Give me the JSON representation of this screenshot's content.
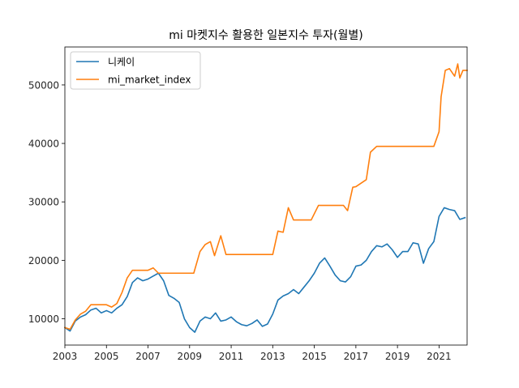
{
  "chart_data": {
    "type": "line",
    "title": "mi 마켓지수 활용한 일본지수 투자(월별)",
    "xlabel": "",
    "ylabel": "",
    "xlim": [
      2003.0,
      2022.35
    ],
    "ylim": [
      5500,
      56500
    ],
    "x_ticks": [
      2003,
      2005,
      2007,
      2009,
      2011,
      2013,
      2015,
      2017,
      2019,
      2021
    ],
    "x_tick_labels": [
      "2003",
      "2005",
      "2007",
      "2009",
      "2011",
      "2013",
      "2015",
      "2017",
      "2019",
      "2021"
    ],
    "y_ticks": [
      10000,
      20000,
      30000,
      40000,
      50000
    ],
    "y_tick_labels": [
      "10000",
      "20000",
      "30000",
      "40000",
      "50000"
    ],
    "legend_position": "upper-left",
    "series": [
      {
        "name": "니케이",
        "color": "#1f77b4",
        "points": [
          [
            2003.0,
            8500
          ],
          [
            2003.25,
            7900
          ],
          [
            2003.5,
            9600
          ],
          [
            2003.75,
            10300
          ],
          [
            2004.0,
            10700
          ],
          [
            2004.25,
            11500
          ],
          [
            2004.5,
            11800
          ],
          [
            2004.75,
            11000
          ],
          [
            2005.0,
            11400
          ],
          [
            2005.25,
            11000
          ],
          [
            2005.5,
            11800
          ],
          [
            2005.75,
            12400
          ],
          [
            2006.0,
            13800
          ],
          [
            2006.25,
            16200
          ],
          [
            2006.5,
            17000
          ],
          [
            2006.75,
            16500
          ],
          [
            2007.0,
            16800
          ],
          [
            2007.25,
            17300
          ],
          [
            2007.5,
            17800
          ],
          [
            2007.75,
            16500
          ],
          [
            2008.0,
            14000
          ],
          [
            2008.25,
            13500
          ],
          [
            2008.5,
            12800
          ],
          [
            2008.75,
            10000
          ],
          [
            2009.0,
            8500
          ],
          [
            2009.25,
            7700
          ],
          [
            2009.5,
            9600
          ],
          [
            2009.75,
            10300
          ],
          [
            2010.0,
            10000
          ],
          [
            2010.25,
            11000
          ],
          [
            2010.5,
            9600
          ],
          [
            2010.75,
            9800
          ],
          [
            2011.0,
            10300
          ],
          [
            2011.25,
            9500
          ],
          [
            2011.5,
            9000
          ],
          [
            2011.75,
            8800
          ],
          [
            2012.0,
            9200
          ],
          [
            2012.25,
            9800
          ],
          [
            2012.5,
            8700
          ],
          [
            2012.75,
            9100
          ],
          [
            2013.0,
            10800
          ],
          [
            2013.25,
            13200
          ],
          [
            2013.5,
            13900
          ],
          [
            2013.75,
            14300
          ],
          [
            2014.0,
            15000
          ],
          [
            2014.25,
            14300
          ],
          [
            2014.5,
            15400
          ],
          [
            2014.75,
            16500
          ],
          [
            2015.0,
            17800
          ],
          [
            2015.25,
            19500
          ],
          [
            2015.5,
            20400
          ],
          [
            2015.75,
            19000
          ],
          [
            2016.0,
            17500
          ],
          [
            2016.25,
            16500
          ],
          [
            2016.5,
            16300
          ],
          [
            2016.75,
            17200
          ],
          [
            2017.0,
            19000
          ],
          [
            2017.25,
            19200
          ],
          [
            2017.5,
            20000
          ],
          [
            2017.75,
            21500
          ],
          [
            2018.0,
            22500
          ],
          [
            2018.25,
            22300
          ],
          [
            2018.5,
            22800
          ],
          [
            2018.75,
            21800
          ],
          [
            2019.0,
            20500
          ],
          [
            2019.25,
            21500
          ],
          [
            2019.5,
            21500
          ],
          [
            2019.75,
            23000
          ],
          [
            2020.0,
            22800
          ],
          [
            2020.25,
            19500
          ],
          [
            2020.5,
            22000
          ],
          [
            2020.75,
            23200
          ],
          [
            2021.0,
            27500
          ],
          [
            2021.25,
            29000
          ],
          [
            2021.5,
            28700
          ],
          [
            2021.75,
            28500
          ],
          [
            2022.0,
            27000
          ],
          [
            2022.25,
            27300
          ]
        ]
      },
      {
        "name": "mi_market_index",
        "color": "#ff7f0e",
        "points": [
          [
            2003.0,
            8500
          ],
          [
            2003.25,
            8200
          ],
          [
            2003.5,
            9800
          ],
          [
            2003.75,
            10800
          ],
          [
            2004.0,
            11300
          ],
          [
            2004.25,
            12400
          ],
          [
            2004.5,
            12400
          ],
          [
            2005.0,
            12400
          ],
          [
            2005.25,
            12000
          ],
          [
            2005.5,
            12600
          ],
          [
            2005.75,
            14500
          ],
          [
            2006.0,
            17000
          ],
          [
            2006.25,
            18300
          ],
          [
            2007.0,
            18300
          ],
          [
            2007.25,
            18700
          ],
          [
            2007.5,
            17800
          ],
          [
            2009.2,
            17800
          ],
          [
            2009.5,
            21500
          ],
          [
            2009.75,
            22700
          ],
          [
            2010.0,
            23200
          ],
          [
            2010.2,
            20800
          ],
          [
            2010.5,
            24200
          ],
          [
            2010.75,
            21000
          ],
          [
            2013.0,
            21000
          ],
          [
            2013.25,
            25000
          ],
          [
            2013.5,
            24800
          ],
          [
            2013.75,
            29000
          ],
          [
            2014.0,
            26900
          ],
          [
            2014.85,
            26900
          ],
          [
            2015.2,
            29400
          ],
          [
            2016.4,
            29400
          ],
          [
            2016.6,
            28500
          ],
          [
            2016.85,
            32500
          ],
          [
            2017.0,
            32600
          ],
          [
            2017.5,
            33800
          ],
          [
            2017.7,
            38500
          ],
          [
            2018.0,
            39500
          ],
          [
            2020.75,
            39500
          ],
          [
            2021.0,
            42000
          ],
          [
            2021.1,
            48000
          ],
          [
            2021.3,
            52500
          ],
          [
            2021.5,
            52800
          ],
          [
            2021.75,
            51500
          ],
          [
            2021.9,
            53600
          ],
          [
            2022.0,
            51200
          ],
          [
            2022.15,
            52500
          ],
          [
            2022.35,
            52500
          ]
        ]
      }
    ]
  }
}
